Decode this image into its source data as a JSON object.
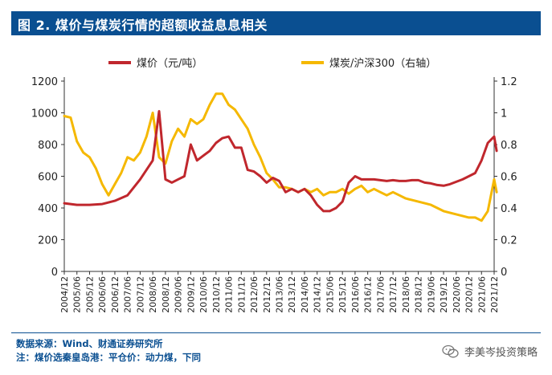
{
  "header": {
    "title": "图 2.  煤价与煤炭行情的超额收益息息相关"
  },
  "footer": {
    "source": "数据来源：Wind、财通证券研究所",
    "note": "注：煤价选秦皇岛港：平仓价：动力煤，下同",
    "watermark": "李美岑投资策略",
    "watermark_icon": "wechat-icon"
  },
  "colors": {
    "title_bg": "#0a4f91",
    "price_line": "#c0272d",
    "ratio_line": "#f5b800",
    "footer_text": "#0a4f91"
  },
  "chart_data": {
    "type": "line",
    "title": "",
    "legend_position": "top",
    "grid": false,
    "x_ticks": [
      "2004/12",
      "2005/06",
      "2005/12",
      "2006/06",
      "2006/12",
      "2007/06",
      "2007/12",
      "2008/06",
      "2008/12",
      "2009/06",
      "2009/12",
      "2010/06",
      "2010/12",
      "2011/06",
      "2011/12",
      "2012/06",
      "2012/12",
      "2013/06",
      "2013/12",
      "2014/06",
      "2014/12",
      "2015/06",
      "2015/12",
      "2016/06",
      "2016/12",
      "2017/06",
      "2017/12",
      "2018/06",
      "2018/12",
      "2019/06",
      "2019/12",
      "2020/06",
      "2020/12",
      "2021/06",
      "2021/12"
    ],
    "left_axis": {
      "label": "",
      "ylim": [
        0,
        1200
      ],
      "ticks": [
        "0",
        "200",
        "400",
        "600",
        "800",
        "1000",
        "1200"
      ]
    },
    "right_axis": {
      "label": "",
      "ylim": [
        0,
        1.2
      ],
      "ticks": [
        "0",
        "0.2",
        "0.4",
        "0.6",
        "0.8",
        "1",
        "1.2"
      ]
    },
    "series": [
      {
        "name": "煤价（元/吨）",
        "axis": "left",
        "x": [
          0,
          1,
          2,
          3,
          4,
          5,
          6,
          7,
          7.5,
          8,
          8.5,
          9,
          9.5,
          10,
          10.5,
          11,
          11.5,
          12,
          12.5,
          13,
          13.5,
          14,
          14.5,
          15,
          15.5,
          16,
          16.5,
          17,
          17.5,
          18,
          18.5,
          19,
          19.5,
          20,
          20.5,
          21,
          21.5,
          22,
          22.5,
          23,
          23.5,
          24,
          24.5,
          25,
          25.5,
          26,
          26.5,
          27,
          27.5,
          28,
          28.5,
          29,
          29.5,
          30,
          30.5,
          31,
          31.5,
          32,
          32.5,
          33,
          33.5,
          34,
          34.2
        ],
        "values": [
          430,
          420,
          420,
          425,
          445,
          480,
          580,
          700,
          1010,
          580,
          560,
          580,
          600,
          800,
          700,
          730,
          760,
          810,
          840,
          850,
          780,
          780,
          640,
          630,
          600,
          560,
          590,
          570,
          500,
          520,
          500,
          520,
          480,
          420,
          380,
          380,
          400,
          440,
          560,
          600,
          580,
          580,
          580,
          575,
          570,
          575,
          570,
          570,
          575,
          575,
          560,
          555,
          545,
          540,
          550,
          565,
          580,
          600,
          620,
          700,
          810,
          850,
          760
        ]
      },
      {
        "name": "煤炭/沪深300（右轴）",
        "axis": "right",
        "x": [
          0,
          0.5,
          1,
          1.5,
          2,
          2.5,
          3,
          3.5,
          4,
          4.5,
          5,
          5.5,
          6,
          6.5,
          7,
          7.5,
          8,
          8.5,
          9,
          9.5,
          10,
          10.5,
          11,
          11.5,
          12,
          12.5,
          13,
          13.5,
          14,
          14.5,
          15,
          15.5,
          16,
          16.5,
          17,
          17.5,
          18,
          18.5,
          19,
          19.5,
          20,
          20.5,
          21,
          21.5,
          22,
          22.5,
          23,
          23.5,
          24,
          24.5,
          25,
          25.5,
          26,
          26.5,
          27,
          27.5,
          28,
          28.5,
          29,
          29.5,
          30,
          30.5,
          31,
          31.5,
          32,
          32.5,
          33,
          33.5,
          34,
          34.2
        ],
        "values": [
          0.98,
          0.97,
          0.82,
          0.75,
          0.72,
          0.65,
          0.55,
          0.48,
          0.55,
          0.62,
          0.72,
          0.7,
          0.75,
          0.85,
          1.0,
          0.72,
          0.68,
          0.82,
          0.9,
          0.85,
          0.96,
          0.93,
          0.96,
          1.05,
          1.12,
          1.12,
          1.05,
          1.02,
          0.96,
          0.9,
          0.8,
          0.72,
          0.62,
          0.58,
          0.53,
          0.53,
          0.52,
          0.5,
          0.52,
          0.5,
          0.52,
          0.48,
          0.5,
          0.5,
          0.52,
          0.49,
          0.52,
          0.54,
          0.5,
          0.52,
          0.5,
          0.48,
          0.5,
          0.48,
          0.46,
          0.45,
          0.44,
          0.43,
          0.42,
          0.4,
          0.38,
          0.37,
          0.36,
          0.35,
          0.34,
          0.34,
          0.32,
          0.38,
          0.58,
          0.5
        ]
      }
    ]
  }
}
